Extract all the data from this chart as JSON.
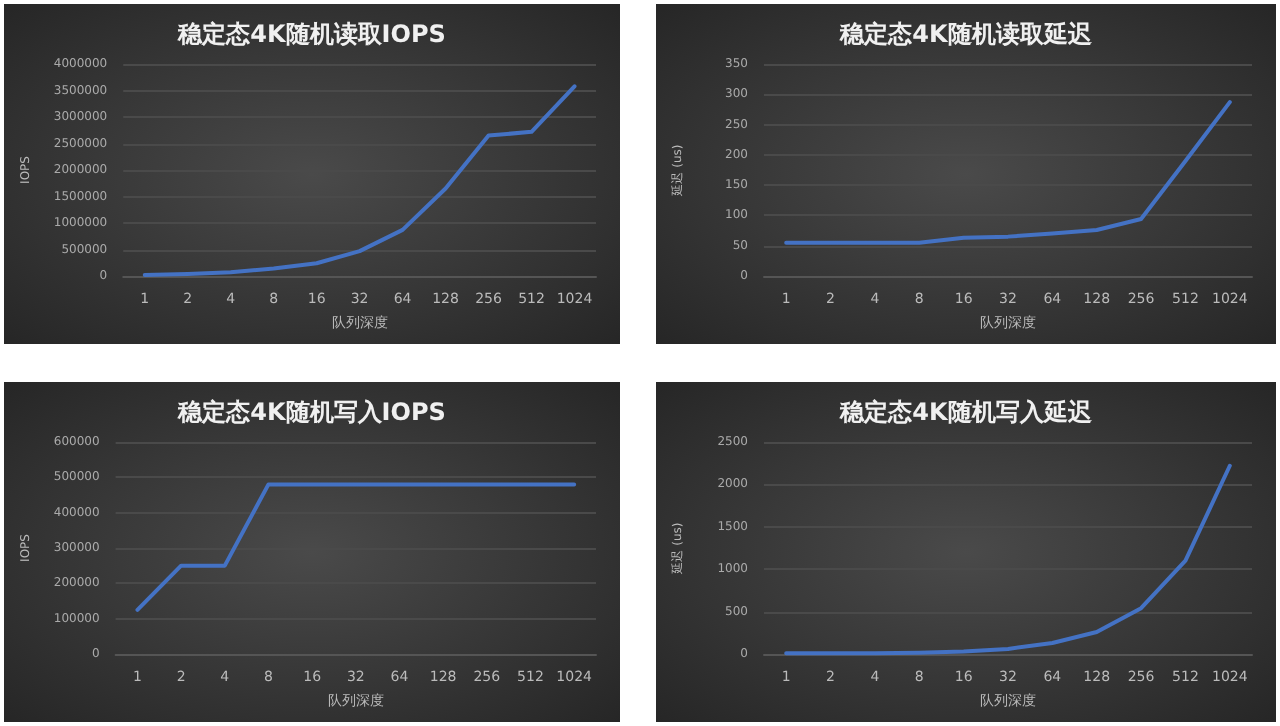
{
  "chart_data": [
    {
      "type": "line",
      "title": "稳定态4K随机读取IOPS",
      "xlabel": "队列深度",
      "ylabel": "IOPS",
      "categories": [
        "1",
        "2",
        "4",
        "8",
        "16",
        "32",
        "64",
        "128",
        "256",
        "512",
        "1024"
      ],
      "series": [
        {
          "color": "#4472c4",
          "values": [
            20000,
            40000,
            70000,
            140000,
            240000,
            470000,
            870000,
            1650000,
            2650000,
            2720000,
            3580000
          ]
        }
      ],
      "ylim": [
        0,
        4000000
      ],
      "yticks": [
        0,
        500000,
        1000000,
        1500000,
        2000000,
        2500000,
        3000000,
        3500000,
        4000000
      ],
      "grid": "y",
      "marker": "none"
    },
    {
      "type": "line",
      "title": "稳定态4K随机读取延迟",
      "xlabel": "队列深度",
      "ylabel": "延迟 (us)",
      "categories": [
        "1",
        "2",
        "4",
        "8",
        "16",
        "32",
        "64",
        "128",
        "256",
        "512",
        "1024"
      ],
      "series": [
        {
          "color": "#4472c4",
          "values": [
            55,
            55,
            55,
            55,
            63,
            65,
            70,
            76,
            94,
            190,
            287
          ]
        }
      ],
      "ylim": [
        0,
        350
      ],
      "yticks": [
        0,
        50,
        100,
        150,
        200,
        250,
        300,
        350
      ],
      "grid": "y",
      "marker": "none"
    },
    {
      "type": "line",
      "title": "稳定态4K随机写入IOPS",
      "xlabel": "队列深度",
      "ylabel": "IOPS",
      "categories": [
        "1",
        "2",
        "4",
        "8",
        "16",
        "32",
        "64",
        "128",
        "256",
        "512",
        "1024"
      ],
      "series": [
        {
          "color": "#4472c4",
          "values": [
            125000,
            250000,
            250000,
            480000,
            480000,
            480000,
            480000,
            480000,
            480000,
            480000,
            480000
          ]
        }
      ],
      "ylim": [
        0,
        600000
      ],
      "yticks": [
        0,
        100000,
        200000,
        300000,
        400000,
        500000,
        600000
      ],
      "grid": "y",
      "marker": "none"
    },
    {
      "type": "line",
      "title": "稳定态4K随机写入延迟",
      "xlabel": "队列深度",
      "ylabel": "延迟 (us)",
      "categories": [
        "1",
        "2",
        "4",
        "8",
        "16",
        "32",
        "64",
        "128",
        "256",
        "512",
        "1024"
      ],
      "series": [
        {
          "color": "#4472c4",
          "values": [
            8,
            8,
            10,
            15,
            30,
            60,
            130,
            260,
            540,
            1100,
            2220
          ]
        }
      ],
      "ylim": [
        0,
        2500
      ],
      "yticks": [
        0,
        500,
        1000,
        1500,
        2000,
        2500
      ],
      "grid": "y",
      "marker": "none"
    }
  ]
}
